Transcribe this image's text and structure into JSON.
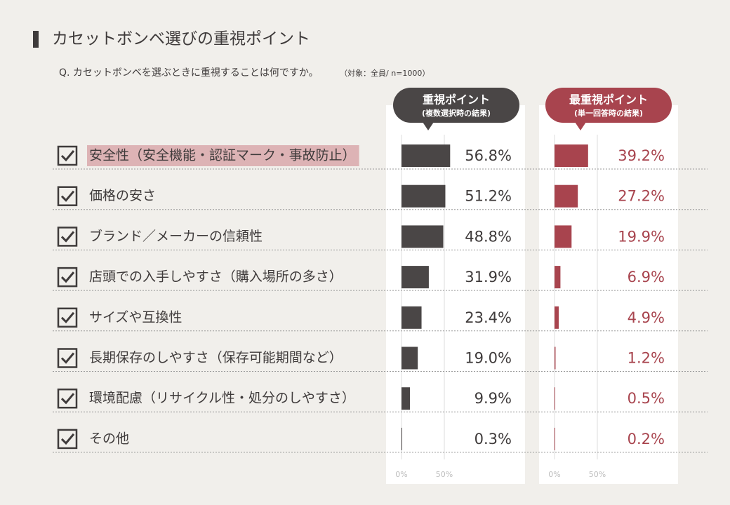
{
  "chart_data": {
    "type": "bar",
    "title": "カセットボンベ選びの重視ポイント",
    "subtitle": "Q. カセットボンベを選ぶときに重視することは何ですか。",
    "note": "（対象：全員/ n=1000）",
    "categories": [
      "安全性（安全機能・認証マーク・事故防止）",
      "価格の安さ",
      "ブランド／メーカーの信頼性",
      "店頭での入手しやすさ（購入場所の多さ）",
      "サイズや互換性",
      "長期保存のしやすさ（保存可能期間など）",
      "環境配慮（リサイクル性・処分のしやすさ）",
      "その他"
    ],
    "highlight_index": 0,
    "xlim": [
      0,
      100
    ],
    "xticks": [
      {
        "value": 0,
        "label": "0%"
      },
      {
        "value": 50,
        "label": "50%"
      }
    ],
    "series": [
      {
        "name": "重視ポイント",
        "note": "(複数選択時の結果)",
        "color": "#4a4646",
        "values": [
          56.8,
          51.2,
          48.8,
          31.9,
          23.4,
          19.0,
          9.9,
          0.3
        ],
        "value_labels": [
          "56.8%",
          "51.2%",
          "48.8%",
          "31.9%",
          "23.4%",
          "19.0%",
          "9.9%",
          "0.3%"
        ]
      },
      {
        "name": "最重視ポイント",
        "note": "(単一回答時の結果)",
        "color": "#a8444e",
        "values": [
          39.2,
          27.2,
          19.9,
          6.9,
          4.9,
          1.2,
          0.5,
          0.2
        ],
        "value_labels": [
          "39.2%",
          "27.2%",
          "19.9%",
          "6.9%",
          "4.9%",
          "1.2%",
          "0.5%",
          "0.2%"
        ]
      }
    ]
  }
}
